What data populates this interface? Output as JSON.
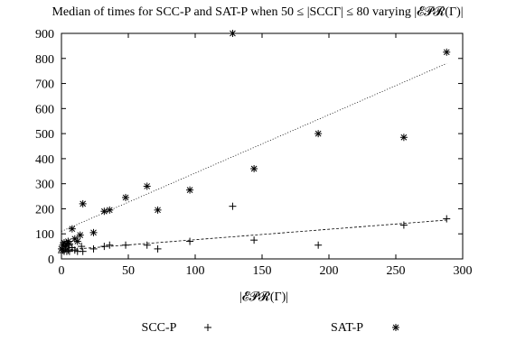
{
  "chart_data": {
    "type": "scatter",
    "title": "Median of times for SCC-P and SAT-P when 50 ≤ |SCCΓ| ≤ 80 varying |𝓔𝓟𝓡(Γ)|",
    "xlabel": "|𝓔𝓟𝓡(Γ)|",
    "ylabel": "",
    "xlim": [
      0,
      300
    ],
    "ylim": [
      0,
      900
    ],
    "xticks": [
      "0",
      "50",
      "100",
      "150",
      "200",
      "250",
      "300"
    ],
    "yticks": [
      "0",
      "100",
      "200",
      "300",
      "400",
      "500",
      "600",
      "700",
      "800",
      "900"
    ],
    "grid": false,
    "legend_position": "bottom",
    "series": [
      {
        "name": "SCC-P",
        "marker": "plus",
        "color": "#000000",
        "points": [
          [
            0,
            25
          ],
          [
            1,
            35
          ],
          [
            2,
            30
          ],
          [
            3,
            40
          ],
          [
            4,
            30
          ],
          [
            5,
            35
          ],
          [
            6,
            30
          ],
          [
            8,
            45
          ],
          [
            10,
            35
          ],
          [
            12,
            30
          ],
          [
            15,
            50
          ],
          [
            16,
            30
          ],
          [
            24,
            40
          ],
          [
            32,
            50
          ],
          [
            36,
            55
          ],
          [
            48,
            55
          ],
          [
            64,
            55
          ],
          [
            72,
            40
          ],
          [
            96,
            70
          ],
          [
            128,
            210
          ],
          [
            144,
            75
          ],
          [
            192,
            55
          ],
          [
            256,
            135
          ],
          [
            288,
            160
          ]
        ],
        "trend": [
          [
            0,
            35
          ],
          [
            288,
            155
          ]
        ],
        "trend_style": "dashed"
      },
      {
        "name": "SAT-P",
        "marker": "asterisk",
        "color": "#000000",
        "points": [
          [
            0,
            40
          ],
          [
            1,
            55
          ],
          [
            2,
            65
          ],
          [
            3,
            50
          ],
          [
            4,
            60
          ],
          [
            5,
            70
          ],
          [
            6,
            60
          ],
          [
            8,
            120
          ],
          [
            10,
            80
          ],
          [
            12,
            70
          ],
          [
            14,
            95
          ],
          [
            16,
            220
          ],
          [
            24,
            105
          ],
          [
            32,
            190
          ],
          [
            36,
            195
          ],
          [
            48,
            245
          ],
          [
            64,
            290
          ],
          [
            72,
            195
          ],
          [
            96,
            275
          ],
          [
            128,
            900
          ],
          [
            144,
            360
          ],
          [
            192,
            500
          ],
          [
            256,
            485
          ],
          [
            288,
            825
          ]
        ],
        "trend": [
          [
            0,
            110
          ],
          [
            288,
            780
          ]
        ],
        "trend_style": "dotted"
      }
    ]
  }
}
